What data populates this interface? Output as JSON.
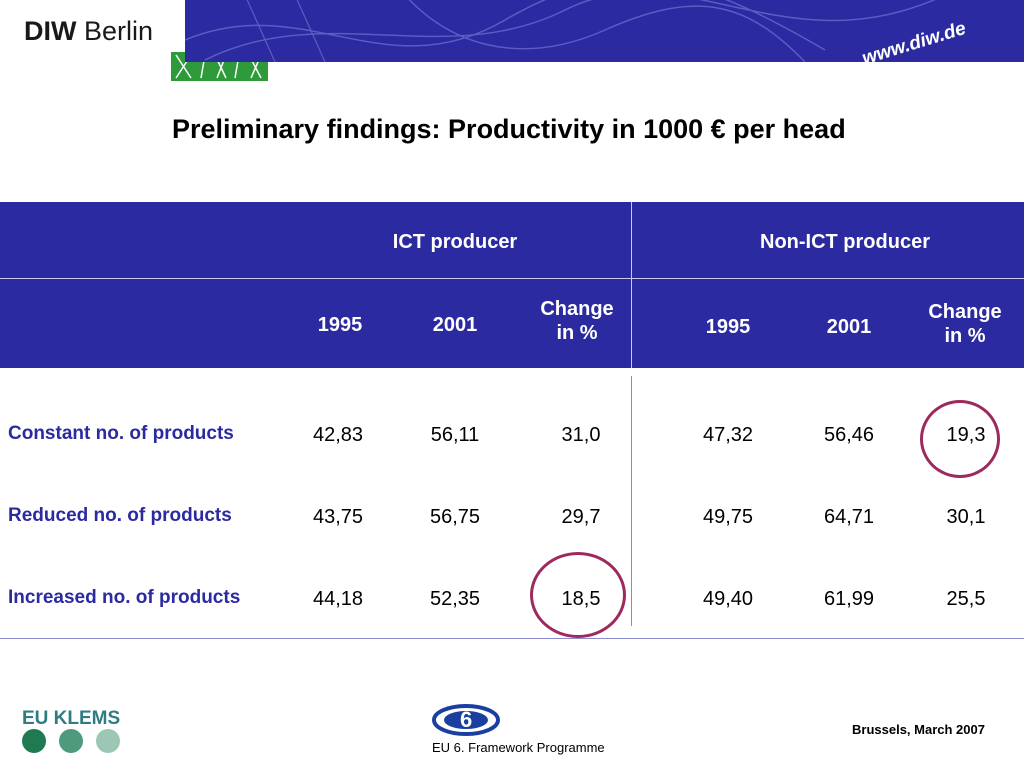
{
  "header": {
    "logo_bold": "DIW",
    "logo_regular": " Berlin",
    "url": "www.diw.de"
  },
  "title": "Preliminary findings: Productivity in 1000 € per head",
  "table": {
    "groups": [
      "ICT producer",
      "Non-ICT producer"
    ],
    "subheaders": [
      [
        "1995",
        "2001",
        "Change",
        "in %"
      ],
      [
        "1995",
        "2001",
        "Change",
        "in %"
      ]
    ],
    "rows": [
      {
        "label": "Constant no. of products",
        "values": [
          "42,83",
          "56,11",
          "31,0",
          "47,32",
          "56,46",
          "19,3"
        ]
      },
      {
        "label": "Reduced no. of products",
        "values": [
          "43,75",
          "56,75",
          "29,7",
          "49,75",
          "64,71",
          "30,1"
        ]
      },
      {
        "label": "Increased no. of products",
        "values": [
          "44,18",
          "52,35",
          "18,5",
          "49,40",
          "61,99",
          "25,5"
        ]
      }
    ],
    "highlighted_cells": [
      "19,3",
      "18,5"
    ]
  },
  "footer": {
    "euklems": "EU KLEMS",
    "framework": "EU 6. Framework Programme",
    "date": "Brussels,  March 2007"
  },
  "colors": {
    "brand_blue": "#2b2aa0",
    "highlight": "#9c2a5e",
    "green": "#2e9a3a",
    "teal_dots": [
      "#1f7a52",
      "#4f9a7c",
      "#9cc7b4"
    ]
  }
}
